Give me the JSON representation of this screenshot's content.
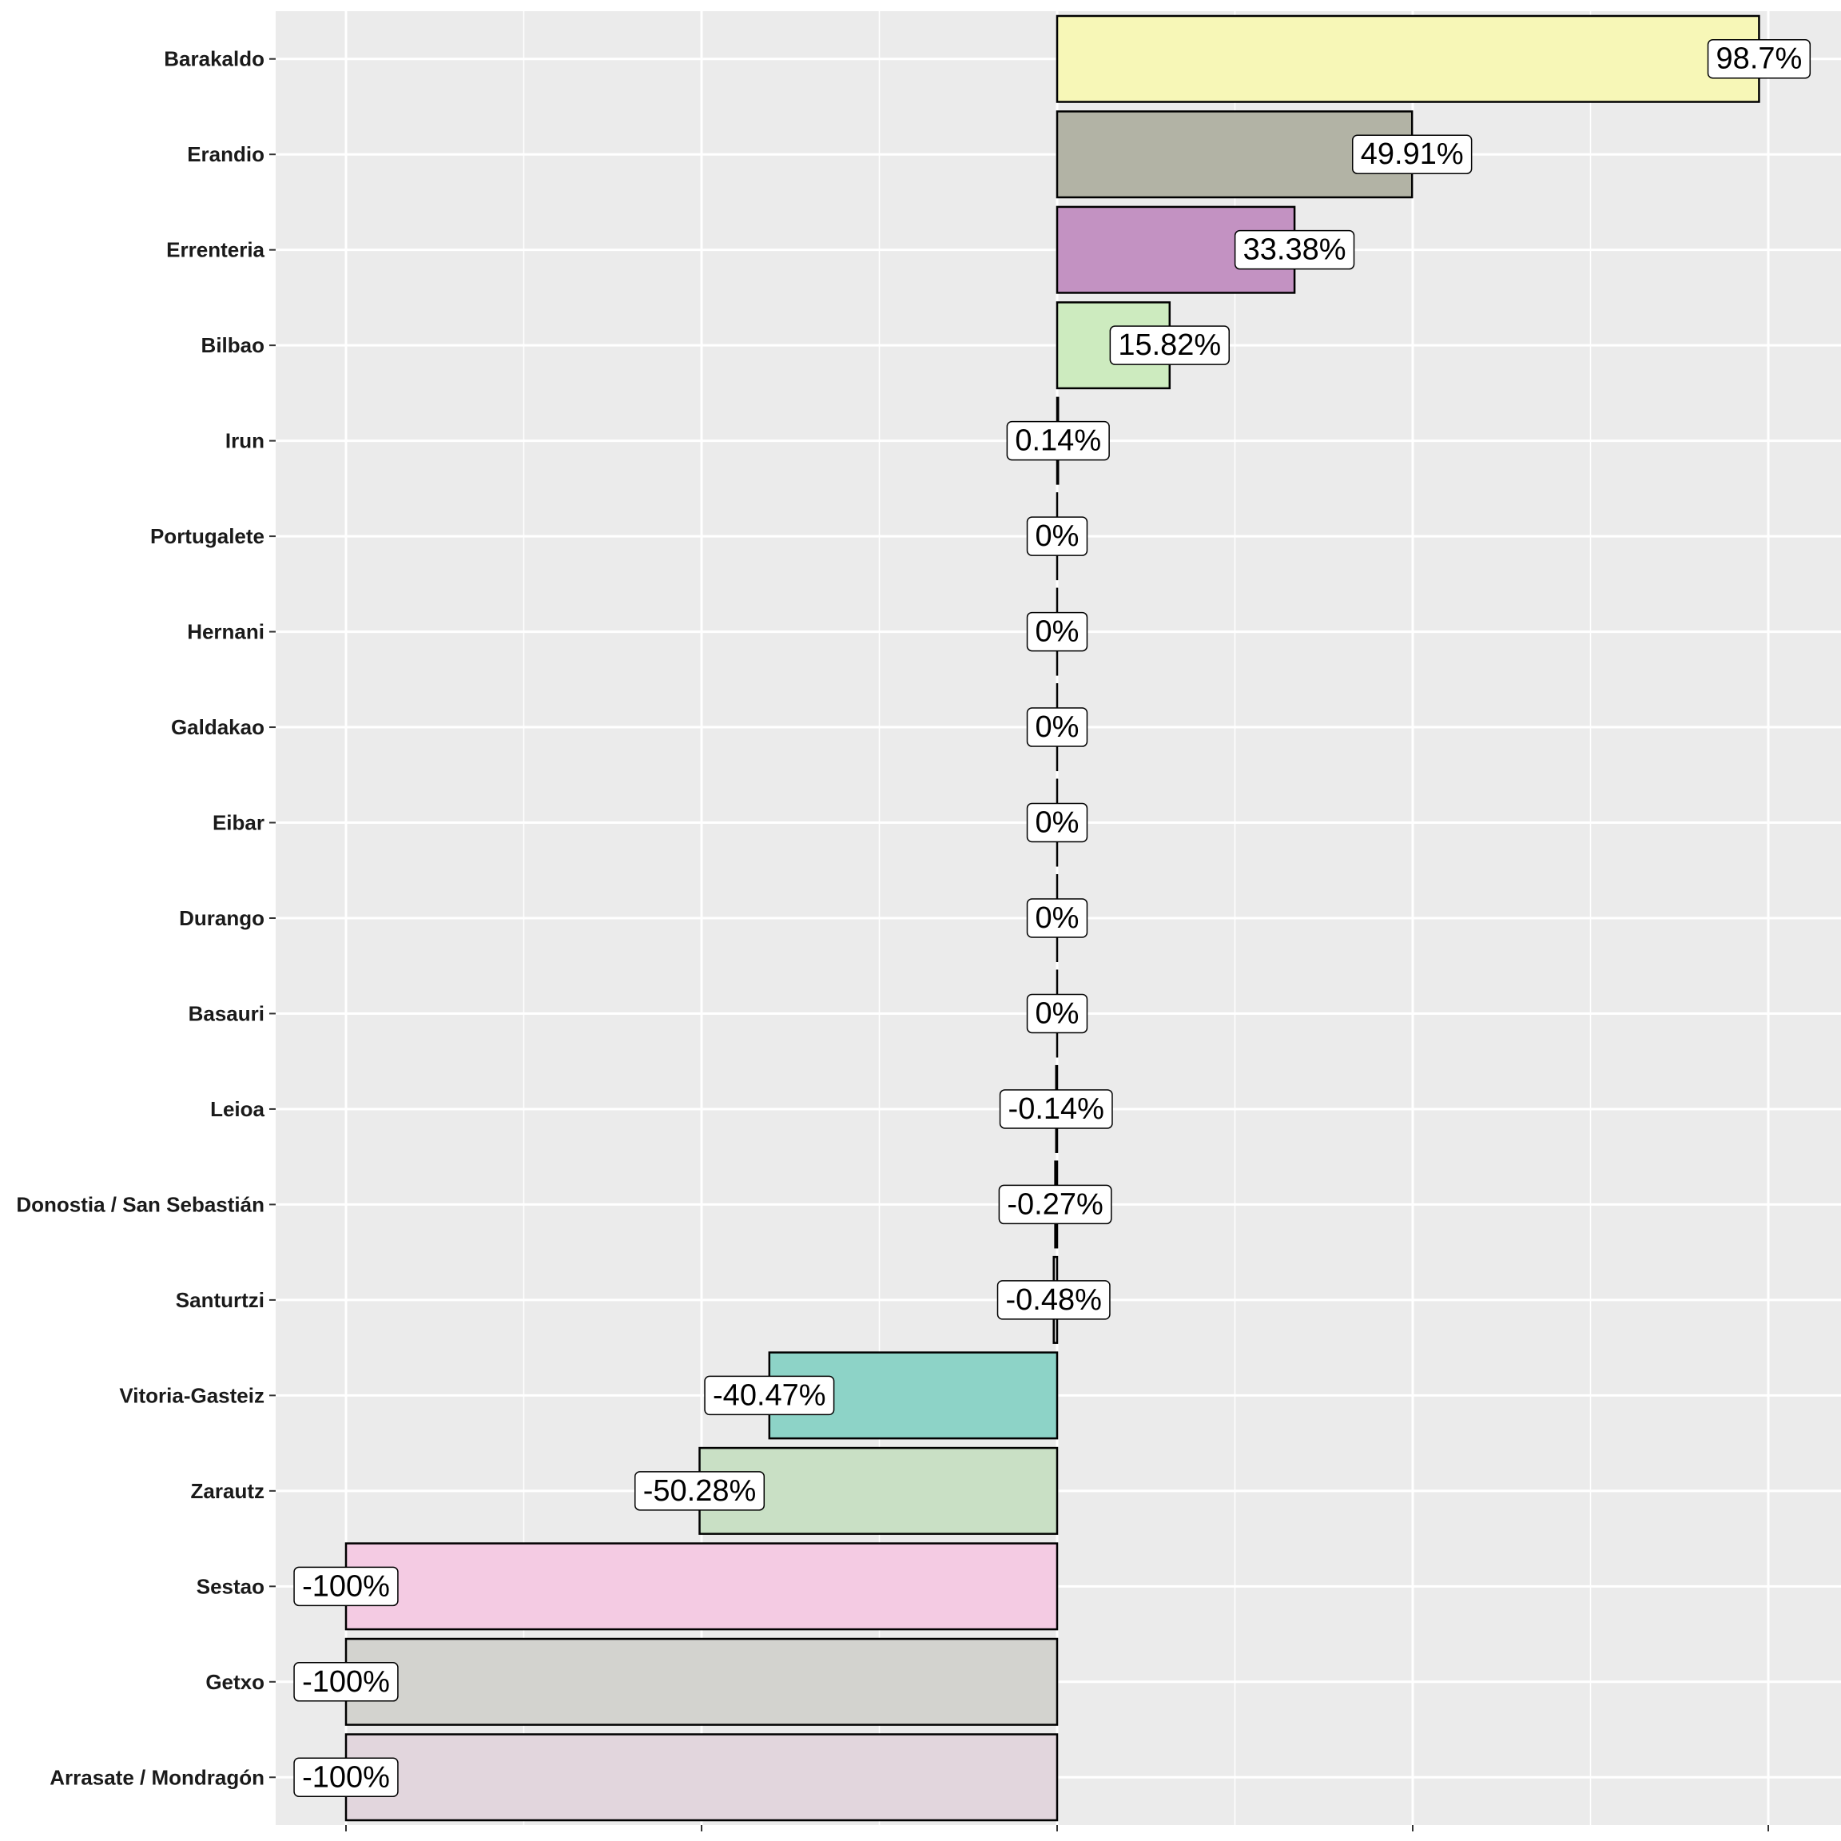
{
  "chart_data": {
    "type": "bar",
    "orientation": "horizontal",
    "title": "",
    "xlabel": "",
    "ylabel": "",
    "xlim": [
      -100,
      100
    ],
    "grid": true,
    "categories": [
      "Barakaldo",
      "Erandio",
      "Errenteria",
      "Bilbao",
      "Irun",
      "Portugalete",
      "Hernani",
      "Galdakao",
      "Eibar",
      "Durango",
      "Basauri",
      "Leioa",
      "Donostia / San Sebastián",
      "Santurtzi",
      "Vitoria-Gasteiz",
      "Zarautz",
      "Sestao",
      "Getxo",
      "Arrasate / Mondragón"
    ],
    "values": [
      98.7,
      49.91,
      33.38,
      15.82,
      0.14,
      0,
      0,
      0,
      0,
      0,
      0,
      -0.14,
      -0.27,
      -0.48,
      -40.47,
      -50.28,
      -100,
      -100,
      -100
    ],
    "labels": [
      "98.7%",
      "49.91%",
      "33.38%",
      "15.82%",
      "0.14%",
      "0%",
      "0%",
      "0%",
      "0%",
      "0%",
      "0%",
      "-0.14%",
      "-0.27%",
      "-0.48%",
      "-40.47%",
      "-50.28%",
      "-100%",
      "-100%",
      "-100%"
    ],
    "colors": [
      "#f7f7b7",
      "#b2b3a5",
      "#c392c2",
      "#cdebbf",
      "#f2f2d0",
      "#e8e0c8",
      "#dcdcdc",
      "#e0d8e8",
      "#d9ead3",
      "#f0d9e0",
      "#e6e6cc",
      "#dde8ee",
      "#f5e0c8",
      "#d0d0d0",
      "#8dd3c7",
      "#c9e0c5",
      "#f4cbe3",
      "#d3d3cf",
      "#e2d6dd"
    ]
  }
}
